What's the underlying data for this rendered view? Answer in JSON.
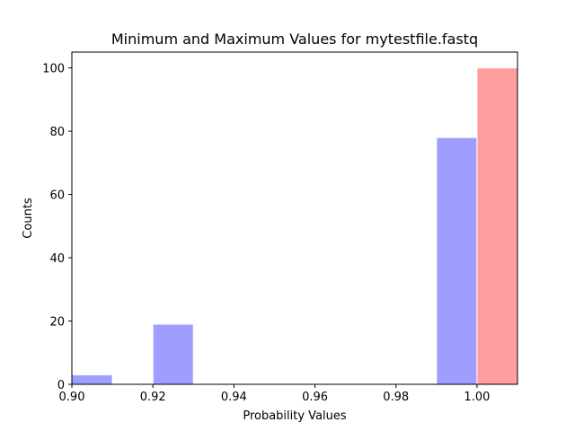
{
  "chart_data": {
    "type": "bar",
    "title": "Minimum and Maximum Values for mytestfile.fastq",
    "xlabel": "Probability Values",
    "ylabel": "Counts",
    "xlim": [
      0.9,
      1.01
    ],
    "ylim": [
      0,
      105
    ],
    "grid": false,
    "x_ticks": [
      {
        "value": 0.9,
        "label": "0.90"
      },
      {
        "value": 0.92,
        "label": "0.92"
      },
      {
        "value": 0.94,
        "label": "0.94"
      },
      {
        "value": 0.96,
        "label": "0.96"
      },
      {
        "value": 0.98,
        "label": "0.98"
      },
      {
        "value": 1.0,
        "label": "1.00"
      }
    ],
    "y_ticks": [
      {
        "value": 0,
        "label": "0"
      },
      {
        "value": 20,
        "label": "20"
      },
      {
        "value": 40,
        "label": "40"
      },
      {
        "value": 60,
        "label": "60"
      },
      {
        "value": 80,
        "label": "80"
      },
      {
        "value": 100,
        "label": "100"
      }
    ],
    "series": [
      {
        "color": "#9e9eff",
        "bins": [
          {
            "x0": 0.9,
            "x1": 0.91,
            "count": 3
          },
          {
            "x0": 0.92,
            "x1": 0.93,
            "count": 19
          },
          {
            "x0": 0.99,
            "x1": 1.0,
            "count": 78
          }
        ]
      },
      {
        "color": "#ff9e9e",
        "bins": [
          {
            "x0": 1.0,
            "x1": 1.01,
            "count": 100
          }
        ]
      }
    ]
  }
}
